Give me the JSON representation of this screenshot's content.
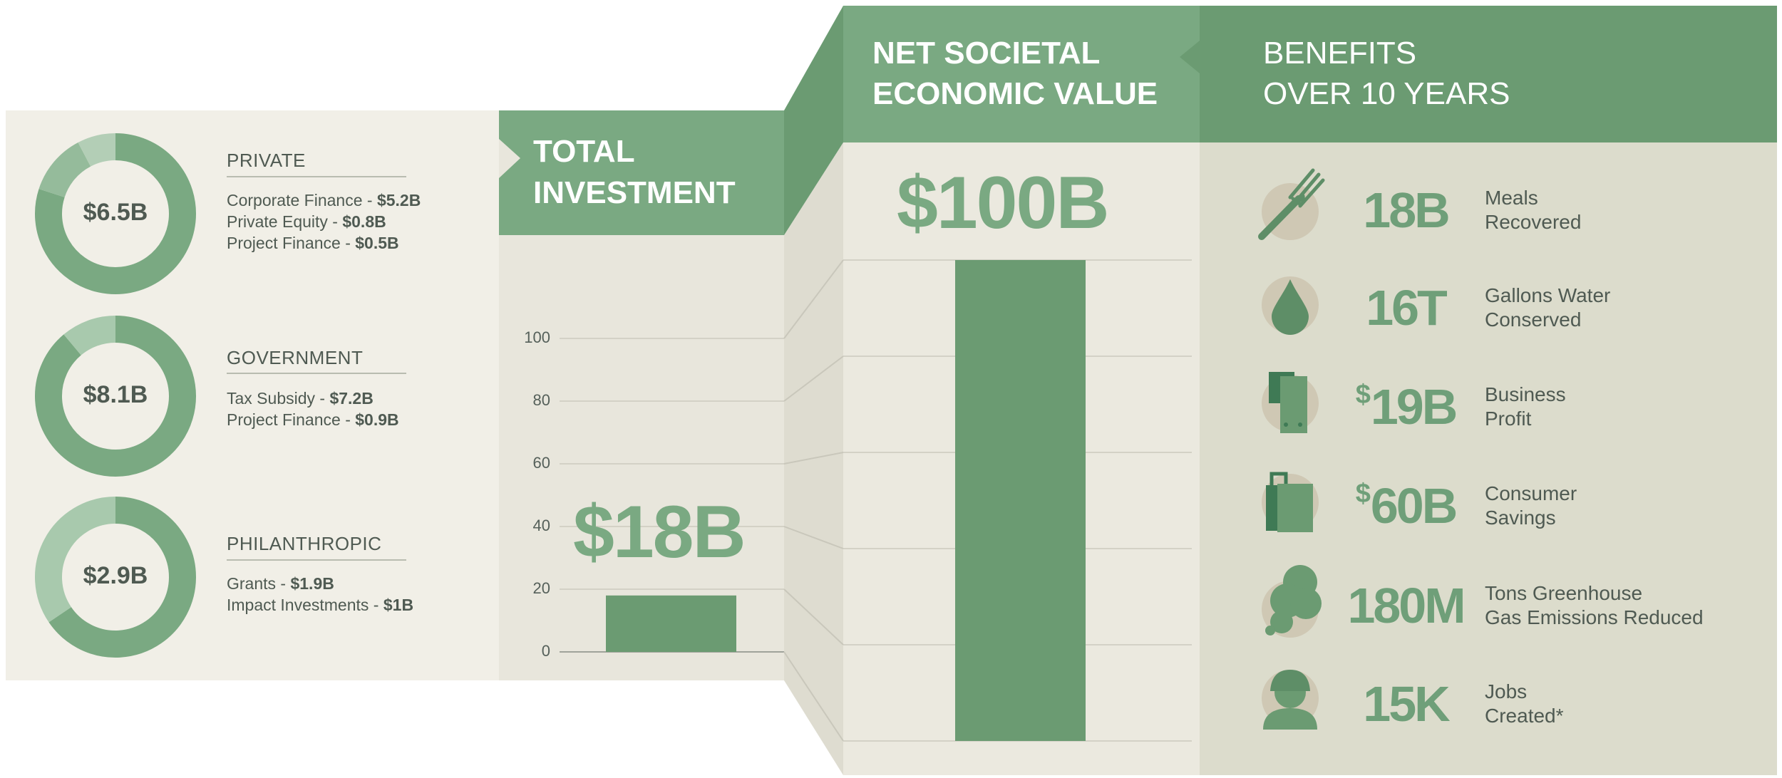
{
  "colors": {
    "dark_green": "#6b9b72",
    "mid_green": "#7aa982",
    "light_green": "#a8c9ad",
    "panel_cream": "#f1efe7",
    "panel_beige": "#e7e5da",
    "panel_tan": "#dcdccc",
    "text_gray": "#4f5a52"
  },
  "funding": [
    {
      "total": "$6.5B",
      "title": "PRIVATE",
      "lines": [
        {
          "label": "Corporate Finance - ",
          "value": "$5.2B"
        },
        {
          "label": "Private Equity - ",
          "value": "$0.8B"
        },
        {
          "label": "Project Finance - ",
          "value": "$0.5B"
        }
      ],
      "slices": [
        5.2,
        0.8,
        0.5
      ]
    },
    {
      "total": "$8.1B",
      "title": "GOVERNMENT",
      "lines": [
        {
          "label": "Tax Subsidy - ",
          "value": "$7.2B"
        },
        {
          "label": "Project Finance - ",
          "value": "$0.9B"
        }
      ],
      "slices": [
        7.2,
        0.9
      ]
    },
    {
      "total": "$2.9B",
      "title": "PHILANTHROPIC",
      "lines": [
        {
          "label": "Grants - ",
          "value": "$1.9B"
        },
        {
          "label": "Impact Investments - ",
          "value": "$1B"
        }
      ],
      "slices": [
        1.9,
        1.0
      ]
    }
  ],
  "investment": {
    "header_line1": "TOTAL",
    "header_line2": "INVESTMENT",
    "big_label": "$18B"
  },
  "societal": {
    "header_line1": "NET SOCIETAL",
    "header_line2": "ECONOMIC VALUE",
    "big_label": "$100B"
  },
  "benefits": {
    "header_line1": "BENEFITS",
    "header_line2": "OVER 10 YEARS",
    "items": [
      {
        "icon": "fork-icon",
        "prefix": "",
        "value": "18B",
        "label1": "Meals",
        "label2": "Recovered"
      },
      {
        "icon": "water-drop-icon",
        "prefix": "",
        "value": "16T",
        "label1": "Gallons Water",
        "label2": "Conserved"
      },
      {
        "icon": "money-icon",
        "prefix": "$",
        "value": "19B",
        "label1": "Business",
        "label2": "Profit"
      },
      {
        "icon": "shopping-bag-icon",
        "prefix": "$",
        "value": "60B",
        "label1": "Consumer",
        "label2": "Savings"
      },
      {
        "icon": "cloud-icon",
        "prefix": "",
        "value": "180M",
        "label1": "Tons Greenhouse",
        "label2": "Gas Emissions Reduced"
      },
      {
        "icon": "worker-icon",
        "prefix": "",
        "value": "15K",
        "label1": "Jobs",
        "label2": "Created*"
      }
    ]
  },
  "chart_data": {
    "type": "bar",
    "categories": [
      "TOTAL INVESTMENT",
      "NET SOCIETAL ECONOMIC VALUE"
    ],
    "values": [
      18,
      100
    ],
    "ylim": [
      0,
      100
    ],
    "yticks": [
      0,
      20,
      40,
      60,
      80,
      100
    ],
    "grid": true
  }
}
